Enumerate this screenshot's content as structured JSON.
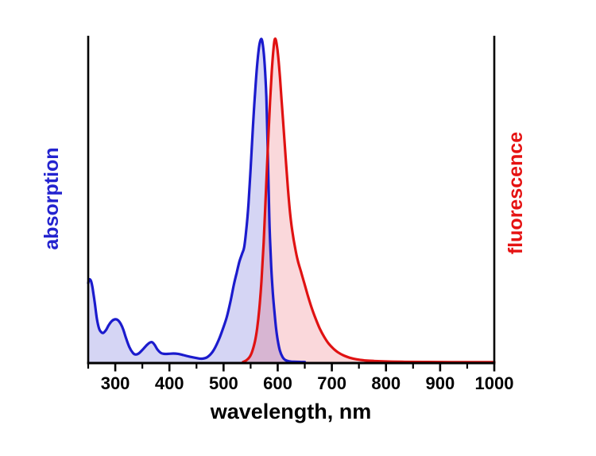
{
  "chart_data": {
    "type": "area",
    "title": "",
    "xlabel": "wavelength, nm",
    "y_left_label": "absorption",
    "y_right_label": "fluorescence",
    "x_range": [
      250,
      1000
    ],
    "y_range": [
      0,
      1.05
    ],
    "grid": false,
    "x_major_ticks": [
      300,
      400,
      500,
      600,
      700,
      800,
      900,
      1000
    ],
    "x_minor_ticks": [
      250,
      350,
      450,
      550,
      650,
      750,
      850,
      950
    ],
    "legend_position": "none",
    "axis_color": "#000000",
    "left_label_color": "#2323cf",
    "right_label_color": "#e51212",
    "series": [
      {
        "name": "absorption",
        "peak_nm": 570,
        "shoulder_nm": 535,
        "stroke": "#1b1bcd",
        "fill": "rgba(55,55,205,0.21)",
        "points": [
          [
            250,
            0.245
          ],
          [
            252,
            0.256
          ],
          [
            255,
            0.252
          ],
          [
            258,
            0.23
          ],
          [
            262,
            0.185
          ],
          [
            266,
            0.135
          ],
          [
            270,
            0.105
          ],
          [
            274,
            0.093
          ],
          [
            278,
            0.091
          ],
          [
            283,
            0.1
          ],
          [
            288,
            0.115
          ],
          [
            294,
            0.128
          ],
          [
            300,
            0.133
          ],
          [
            305,
            0.13
          ],
          [
            310,
            0.119
          ],
          [
            315,
            0.1
          ],
          [
            320,
            0.074
          ],
          [
            326,
            0.047
          ],
          [
            332,
            0.03
          ],
          [
            337,
            0.024
          ],
          [
            343,
            0.027
          ],
          [
            350,
            0.038
          ],
          [
            357,
            0.051
          ],
          [
            363,
            0.06
          ],
          [
            368,
            0.062
          ],
          [
            373,
            0.053
          ],
          [
            378,
            0.039
          ],
          [
            384,
            0.029
          ],
          [
            390,
            0.026
          ],
          [
            398,
            0.026
          ],
          [
            407,
            0.027
          ],
          [
            416,
            0.026
          ],
          [
            426,
            0.022
          ],
          [
            438,
            0.017
          ],
          [
            450,
            0.013
          ],
          [
            460,
            0.011
          ],
          [
            470,
            0.016
          ],
          [
            480,
            0.033
          ],
          [
            490,
            0.065
          ],
          [
            498,
            0.1
          ],
          [
            506,
            0.14
          ],
          [
            513,
            0.19
          ],
          [
            519,
            0.24
          ],
          [
            524,
            0.275
          ],
          [
            529,
            0.31
          ],
          [
            534,
            0.335
          ],
          [
            538,
            0.355
          ],
          [
            542,
            0.41
          ],
          [
            546,
            0.49
          ],
          [
            550,
            0.6
          ],
          [
            554,
            0.72
          ],
          [
            558,
            0.83
          ],
          [
            562,
            0.92
          ],
          [
            566,
            0.98
          ],
          [
            570,
            1.0
          ],
          [
            573,
            0.975
          ],
          [
            576,
            0.92
          ],
          [
            579,
            0.82
          ],
          [
            581,
            0.7
          ],
          [
            583,
            0.55
          ],
          [
            585,
            0.42
          ],
          [
            588,
            0.295
          ],
          [
            591,
            0.215
          ],
          [
            594,
            0.155
          ],
          [
            597,
            0.105
          ],
          [
            600,
            0.068
          ],
          [
            604,
            0.036
          ],
          [
            609,
            0.016
          ],
          [
            614,
            0.007
          ],
          [
            621,
            0.003
          ],
          [
            630,
            0.0015
          ],
          [
            642,
            0.001
          ],
          [
            650,
            0.0008
          ]
        ]
      },
      {
        "name": "fluorescence",
        "peak_nm": 595,
        "stroke": "#e01212",
        "fill": "rgba(228,25,40,0.17)",
        "points": [
          [
            536,
            0.001
          ],
          [
            542,
            0.006
          ],
          [
            548,
            0.016
          ],
          [
            553,
            0.034
          ],
          [
            558,
            0.065
          ],
          [
            562,
            0.105
          ],
          [
            566,
            0.165
          ],
          [
            570,
            0.25
          ],
          [
            574,
            0.37
          ],
          [
            578,
            0.52
          ],
          [
            582,
            0.67
          ],
          [
            586,
            0.81
          ],
          [
            589,
            0.9
          ],
          [
            592,
            0.965
          ],
          [
            594,
            0.995
          ],
          [
            596,
            1.0
          ],
          [
            598,
            0.985
          ],
          [
            601,
            0.945
          ],
          [
            604,
            0.885
          ],
          [
            607,
            0.815
          ],
          [
            611,
            0.72
          ],
          [
            615,
            0.625
          ],
          [
            619,
            0.535
          ],
          [
            623,
            0.46
          ],
          [
            627,
            0.405
          ],
          [
            632,
            0.355
          ],
          [
            637,
            0.315
          ],
          [
            643,
            0.28
          ],
          [
            649,
            0.245
          ],
          [
            655,
            0.21
          ],
          [
            662,
            0.172
          ],
          [
            670,
            0.135
          ],
          [
            678,
            0.103
          ],
          [
            686,
            0.078
          ],
          [
            694,
            0.058
          ],
          [
            703,
            0.042
          ],
          [
            712,
            0.03
          ],
          [
            722,
            0.021
          ],
          [
            733,
            0.014
          ],
          [
            746,
            0.009
          ],
          [
            760,
            0.006
          ],
          [
            778,
            0.004
          ],
          [
            800,
            0.0025
          ],
          [
            830,
            0.0015
          ],
          [
            870,
            0.001
          ],
          [
            920,
            0.0006
          ],
          [
            1000,
            0.0004
          ]
        ]
      }
    ]
  }
}
